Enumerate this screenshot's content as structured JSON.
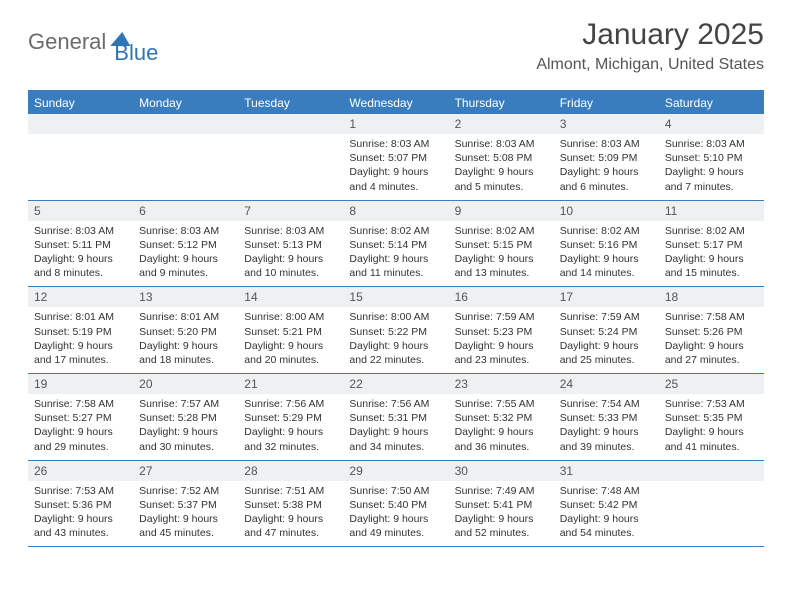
{
  "logo": {
    "text1": "General",
    "text2": "Blue"
  },
  "title": "January 2025",
  "location": "Almont, Michigan, United States",
  "colors": {
    "header_bg": "#3a7dbf",
    "daynum_bg": "#eef0f1",
    "text": "#333333",
    "title_text": "#444444",
    "location_text": "#555555",
    "logo_gray": "#6b6b6b",
    "logo_blue": "#2f75b5"
  },
  "weekdays": [
    "Sunday",
    "Monday",
    "Tuesday",
    "Wednesday",
    "Thursday",
    "Friday",
    "Saturday"
  ],
  "weeks": [
    [
      {
        "n": "",
        "sunrise": "",
        "sunset": "",
        "daylight": ""
      },
      {
        "n": "",
        "sunrise": "",
        "sunset": "",
        "daylight": ""
      },
      {
        "n": "",
        "sunrise": "",
        "sunset": "",
        "daylight": ""
      },
      {
        "n": "1",
        "sunrise": "Sunrise: 8:03 AM",
        "sunset": "Sunset: 5:07 PM",
        "daylight": "Daylight: 9 hours and 4 minutes."
      },
      {
        "n": "2",
        "sunrise": "Sunrise: 8:03 AM",
        "sunset": "Sunset: 5:08 PM",
        "daylight": "Daylight: 9 hours and 5 minutes."
      },
      {
        "n": "3",
        "sunrise": "Sunrise: 8:03 AM",
        "sunset": "Sunset: 5:09 PM",
        "daylight": "Daylight: 9 hours and 6 minutes."
      },
      {
        "n": "4",
        "sunrise": "Sunrise: 8:03 AM",
        "sunset": "Sunset: 5:10 PM",
        "daylight": "Daylight: 9 hours and 7 minutes."
      }
    ],
    [
      {
        "n": "5",
        "sunrise": "Sunrise: 8:03 AM",
        "sunset": "Sunset: 5:11 PM",
        "daylight": "Daylight: 9 hours and 8 minutes."
      },
      {
        "n": "6",
        "sunrise": "Sunrise: 8:03 AM",
        "sunset": "Sunset: 5:12 PM",
        "daylight": "Daylight: 9 hours and 9 minutes."
      },
      {
        "n": "7",
        "sunrise": "Sunrise: 8:03 AM",
        "sunset": "Sunset: 5:13 PM",
        "daylight": "Daylight: 9 hours and 10 minutes."
      },
      {
        "n": "8",
        "sunrise": "Sunrise: 8:02 AM",
        "sunset": "Sunset: 5:14 PM",
        "daylight": "Daylight: 9 hours and 11 minutes."
      },
      {
        "n": "9",
        "sunrise": "Sunrise: 8:02 AM",
        "sunset": "Sunset: 5:15 PM",
        "daylight": "Daylight: 9 hours and 13 minutes."
      },
      {
        "n": "10",
        "sunrise": "Sunrise: 8:02 AM",
        "sunset": "Sunset: 5:16 PM",
        "daylight": "Daylight: 9 hours and 14 minutes."
      },
      {
        "n": "11",
        "sunrise": "Sunrise: 8:02 AM",
        "sunset": "Sunset: 5:17 PM",
        "daylight": "Daylight: 9 hours and 15 minutes."
      }
    ],
    [
      {
        "n": "12",
        "sunrise": "Sunrise: 8:01 AM",
        "sunset": "Sunset: 5:19 PM",
        "daylight": "Daylight: 9 hours and 17 minutes."
      },
      {
        "n": "13",
        "sunrise": "Sunrise: 8:01 AM",
        "sunset": "Sunset: 5:20 PM",
        "daylight": "Daylight: 9 hours and 18 minutes."
      },
      {
        "n": "14",
        "sunrise": "Sunrise: 8:00 AM",
        "sunset": "Sunset: 5:21 PM",
        "daylight": "Daylight: 9 hours and 20 minutes."
      },
      {
        "n": "15",
        "sunrise": "Sunrise: 8:00 AM",
        "sunset": "Sunset: 5:22 PM",
        "daylight": "Daylight: 9 hours and 22 minutes."
      },
      {
        "n": "16",
        "sunrise": "Sunrise: 7:59 AM",
        "sunset": "Sunset: 5:23 PM",
        "daylight": "Daylight: 9 hours and 23 minutes."
      },
      {
        "n": "17",
        "sunrise": "Sunrise: 7:59 AM",
        "sunset": "Sunset: 5:24 PM",
        "daylight": "Daylight: 9 hours and 25 minutes."
      },
      {
        "n": "18",
        "sunrise": "Sunrise: 7:58 AM",
        "sunset": "Sunset: 5:26 PM",
        "daylight": "Daylight: 9 hours and 27 minutes."
      }
    ],
    [
      {
        "n": "19",
        "sunrise": "Sunrise: 7:58 AM",
        "sunset": "Sunset: 5:27 PM",
        "daylight": "Daylight: 9 hours and 29 minutes."
      },
      {
        "n": "20",
        "sunrise": "Sunrise: 7:57 AM",
        "sunset": "Sunset: 5:28 PM",
        "daylight": "Daylight: 9 hours and 30 minutes."
      },
      {
        "n": "21",
        "sunrise": "Sunrise: 7:56 AM",
        "sunset": "Sunset: 5:29 PM",
        "daylight": "Daylight: 9 hours and 32 minutes."
      },
      {
        "n": "22",
        "sunrise": "Sunrise: 7:56 AM",
        "sunset": "Sunset: 5:31 PM",
        "daylight": "Daylight: 9 hours and 34 minutes."
      },
      {
        "n": "23",
        "sunrise": "Sunrise: 7:55 AM",
        "sunset": "Sunset: 5:32 PM",
        "daylight": "Daylight: 9 hours and 36 minutes."
      },
      {
        "n": "24",
        "sunrise": "Sunrise: 7:54 AM",
        "sunset": "Sunset: 5:33 PM",
        "daylight": "Daylight: 9 hours and 39 minutes."
      },
      {
        "n": "25",
        "sunrise": "Sunrise: 7:53 AM",
        "sunset": "Sunset: 5:35 PM",
        "daylight": "Daylight: 9 hours and 41 minutes."
      }
    ],
    [
      {
        "n": "26",
        "sunrise": "Sunrise: 7:53 AM",
        "sunset": "Sunset: 5:36 PM",
        "daylight": "Daylight: 9 hours and 43 minutes."
      },
      {
        "n": "27",
        "sunrise": "Sunrise: 7:52 AM",
        "sunset": "Sunset: 5:37 PM",
        "daylight": "Daylight: 9 hours and 45 minutes."
      },
      {
        "n": "28",
        "sunrise": "Sunrise: 7:51 AM",
        "sunset": "Sunset: 5:38 PM",
        "daylight": "Daylight: 9 hours and 47 minutes."
      },
      {
        "n": "29",
        "sunrise": "Sunrise: 7:50 AM",
        "sunset": "Sunset: 5:40 PM",
        "daylight": "Daylight: 9 hours and 49 minutes."
      },
      {
        "n": "30",
        "sunrise": "Sunrise: 7:49 AM",
        "sunset": "Sunset: 5:41 PM",
        "daylight": "Daylight: 9 hours and 52 minutes."
      },
      {
        "n": "31",
        "sunrise": "Sunrise: 7:48 AM",
        "sunset": "Sunset: 5:42 PM",
        "daylight": "Daylight: 9 hours and 54 minutes."
      },
      {
        "n": "",
        "sunrise": "",
        "sunset": "",
        "daylight": ""
      }
    ]
  ]
}
